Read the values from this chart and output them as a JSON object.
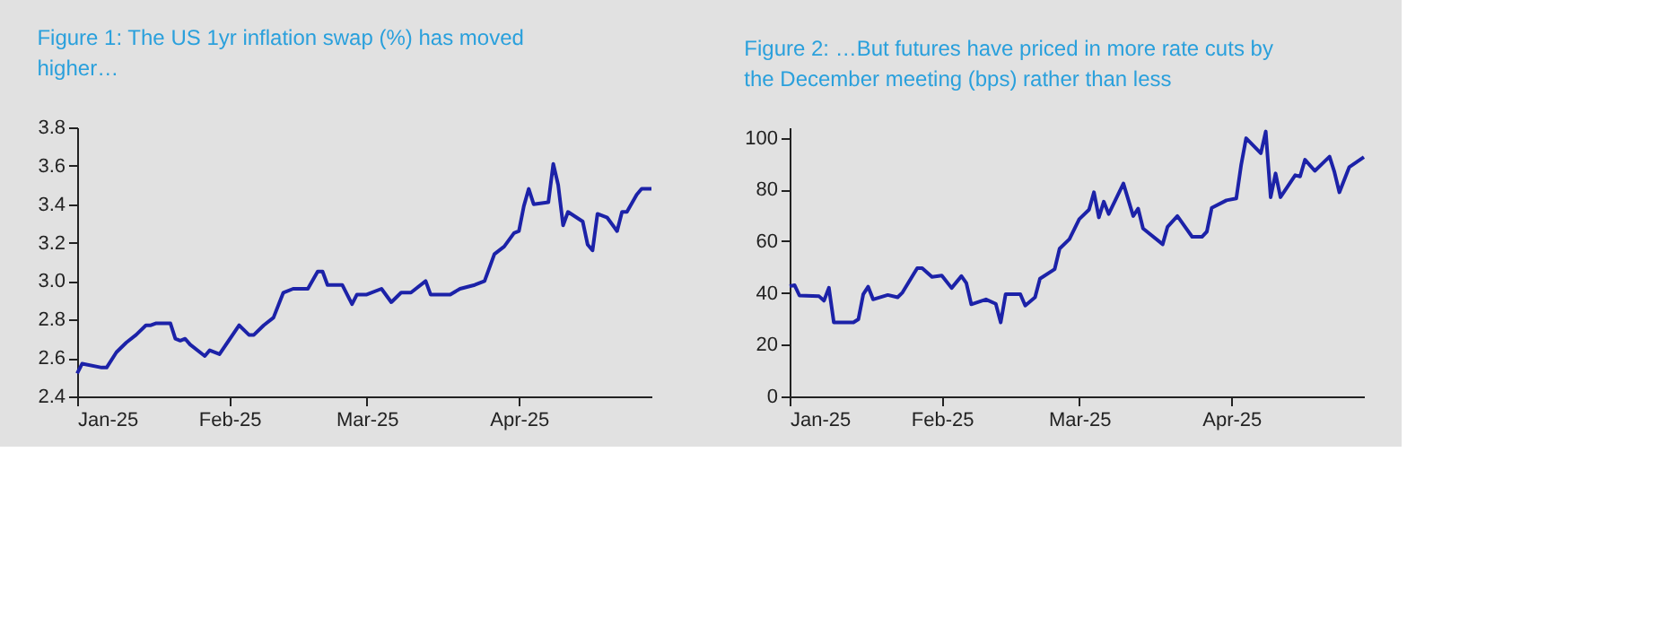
{
  "chart_data": [
    {
      "type": "line",
      "title": "Figure 1: The US 1yr inflation swap (%) has moved higher…",
      "color": "#1c22a8",
      "x": [
        "2025-01-01",
        "2025-01-02",
        "2025-01-06",
        "2025-01-07",
        "2025-01-09",
        "2025-01-11",
        "2025-01-13",
        "2025-01-15",
        "2025-01-16",
        "2025-01-17",
        "2025-01-20",
        "2025-01-21",
        "2025-01-22",
        "2025-01-23",
        "2025-01-24",
        "2025-01-27",
        "2025-01-28",
        "2025-01-30",
        "2025-02-03",
        "2025-02-05",
        "2025-02-06",
        "2025-02-08",
        "2025-02-10",
        "2025-02-12",
        "2025-02-14",
        "2025-02-17",
        "2025-02-19",
        "2025-02-20",
        "2025-02-21",
        "2025-02-24",
        "2025-02-26",
        "2025-02-27",
        "2025-03-01",
        "2025-03-04",
        "2025-03-06",
        "2025-03-08",
        "2025-03-10",
        "2025-03-13",
        "2025-03-14",
        "2025-03-18",
        "2025-03-20",
        "2025-03-23",
        "2025-03-25",
        "2025-03-27",
        "2025-03-29",
        "2025-03-31",
        "2025-04-01",
        "2025-04-02",
        "2025-04-03",
        "2025-04-04",
        "2025-04-07",
        "2025-04-08",
        "2025-04-09",
        "2025-04-10",
        "2025-04-11",
        "2025-04-14",
        "2025-04-15",
        "2025-04-16",
        "2025-04-17",
        "2025-04-19",
        "2025-04-21",
        "2025-04-22",
        "2025-04-23",
        "2025-04-25",
        "2025-04-26",
        "2025-04-28"
      ],
      "values": [
        2.52,
        2.57,
        2.55,
        2.55,
        2.63,
        2.68,
        2.72,
        2.77,
        2.77,
        2.78,
        2.78,
        2.7,
        2.69,
        2.7,
        2.67,
        2.61,
        2.64,
        2.62,
        2.77,
        2.72,
        2.72,
        2.77,
        2.81,
        2.94,
        2.96,
        2.96,
        3.05,
        3.05,
        2.98,
        2.98,
        2.88,
        2.93,
        2.93,
        2.96,
        2.89,
        2.94,
        2.94,
        3.0,
        2.93,
        2.93,
        2.96,
        2.98,
        3.0,
        3.14,
        3.18,
        3.25,
        3.26,
        3.39,
        3.48,
        3.4,
        3.41,
        3.61,
        3.5,
        3.29,
        3.36,
        3.31,
        3.19,
        3.16,
        3.35,
        3.33,
        3.26,
        3.36,
        3.36,
        3.45,
        3.48,
        3.48
      ],
      "xlim": [
        "2025-01-01",
        "2025-04-28"
      ],
      "xticks": [
        {
          "value": "2025-01-01",
          "label": "Jan-25"
        },
        {
          "value": "2025-02-01",
          "label": "Feb-25"
        },
        {
          "value": "2025-03-01",
          "label": "Mar-25"
        },
        {
          "value": "2025-04-01",
          "label": "Apr-25"
        }
      ],
      "ylim": [
        2.4,
        3.8
      ],
      "yticks": [
        2.4,
        2.6,
        2.8,
        {
          "value": 3,
          "label": "3.0"
        },
        3.2,
        3.4,
        3.6,
        3.8
      ]
    },
    {
      "type": "line",
      "title": "Figure 2: …But futures have priced in more rate cuts by the December meeting (bps) rather than less",
      "color": "#1c22a8",
      "x": [
        "2025-01-01",
        "2025-01-02",
        "2025-01-03",
        "2025-01-07",
        "2025-01-08",
        "2025-01-09",
        "2025-01-10",
        "2025-01-14",
        "2025-01-15",
        "2025-01-16",
        "2025-01-17",
        "2025-01-18",
        "2025-01-21",
        "2025-01-23",
        "2025-01-24",
        "2025-01-27",
        "2025-01-28",
        "2025-01-30",
        "2025-02-01",
        "2025-02-03",
        "2025-02-05",
        "2025-02-06",
        "2025-02-07",
        "2025-02-10",
        "2025-02-12",
        "2025-02-13",
        "2025-02-14",
        "2025-02-17",
        "2025-02-18",
        "2025-02-20",
        "2025-02-21",
        "2025-02-24",
        "2025-02-25",
        "2025-02-27",
        "2025-03-01",
        "2025-03-03",
        "2025-03-04",
        "2025-03-05",
        "2025-03-06",
        "2025-03-07",
        "2025-03-10",
        "2025-03-12",
        "2025-03-13",
        "2025-03-14",
        "2025-03-18",
        "2025-03-19",
        "2025-03-21",
        "2025-03-24",
        "2025-03-26",
        "2025-03-27",
        "2025-03-28",
        "2025-03-31",
        "2025-04-02",
        "2025-04-03",
        "2025-04-04",
        "2025-04-07",
        "2025-04-08",
        "2025-04-09",
        "2025-04-10",
        "2025-04-11",
        "2025-04-14",
        "2025-04-15",
        "2025-04-16",
        "2025-04-18",
        "2025-04-21",
        "2025-04-22",
        "2025-04-23",
        "2025-04-25",
        "2025-04-28"
      ],
      "values": [
        42.6,
        43,
        39,
        38.7,
        37,
        42,
        28.6,
        28.6,
        29.8,
        39.5,
        42.4,
        37.5,
        39.2,
        38.3,
        40.2,
        49.6,
        49.6,
        46.2,
        46.7,
        41.9,
        46.5,
        43.8,
        35.6,
        37.5,
        35.8,
        28.6,
        39.5,
        39.5,
        35.1,
        38.3,
        45.5,
        49.2,
        57.1,
        60.8,
        68.5,
        72.2,
        78.9,
        69.2,
        75.3,
        70.5,
        82.3,
        69.7,
        72.6,
        64.9,
        58.8,
        65.6,
        69.7,
        61.7,
        61.7,
        63.7,
        72.9,
        75.8,
        76.5,
        89.6,
        99.8,
        94,
        102.4,
        77,
        86.2,
        77,
        85.5,
        85,
        91.5,
        87.2,
        92.7,
        86.7,
        78.9,
        88.6,
        92.5
      ],
      "xlim": [
        "2025-01-01",
        "2025-04-28"
      ],
      "xticks": [
        {
          "value": "2025-01-01",
          "label": "Jan-25"
        },
        {
          "value": "2025-02-01",
          "label": "Feb-25"
        },
        {
          "value": "2025-03-01",
          "label": "Mar-25"
        },
        {
          "value": "2025-04-01",
          "label": "Apr-25"
        }
      ],
      "ylim": [
        0,
        104
      ],
      "yticks": [
        0,
        20,
        40,
        60,
        80,
        100
      ]
    }
  ]
}
